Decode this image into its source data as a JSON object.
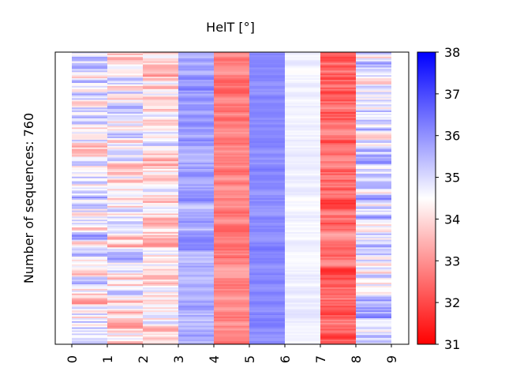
{
  "chart_data": {
    "type": "heatmap",
    "title": "HelT [°]",
    "ylabel": "Number of sequences: 760",
    "xlabel": "",
    "x_ticks": [
      "0",
      "1",
      "2",
      "3",
      "4",
      "5",
      "6",
      "7",
      "8",
      "9"
    ],
    "n_rows": 760,
    "colorbar": {
      "min": 31,
      "max": 38,
      "ticks": [
        "31",
        "32",
        "33",
        "34",
        "35",
        "36",
        "37",
        "38"
      ],
      "colormap": "bwr_reversed",
      "low_color": "#ff0000",
      "mid_color": "#ffffff",
      "high_color": "#0000ff"
    },
    "column_means": [
      34.6,
      34.4,
      34.1,
      35.7,
      32.8,
      36.1,
      34.7,
      32.4,
      35.0,
      null
    ],
    "column_spread": [
      1.6,
      1.4,
      1.2,
      0.6,
      0.5,
      0.3,
      0.2,
      0.8,
      1.3,
      0
    ]
  }
}
